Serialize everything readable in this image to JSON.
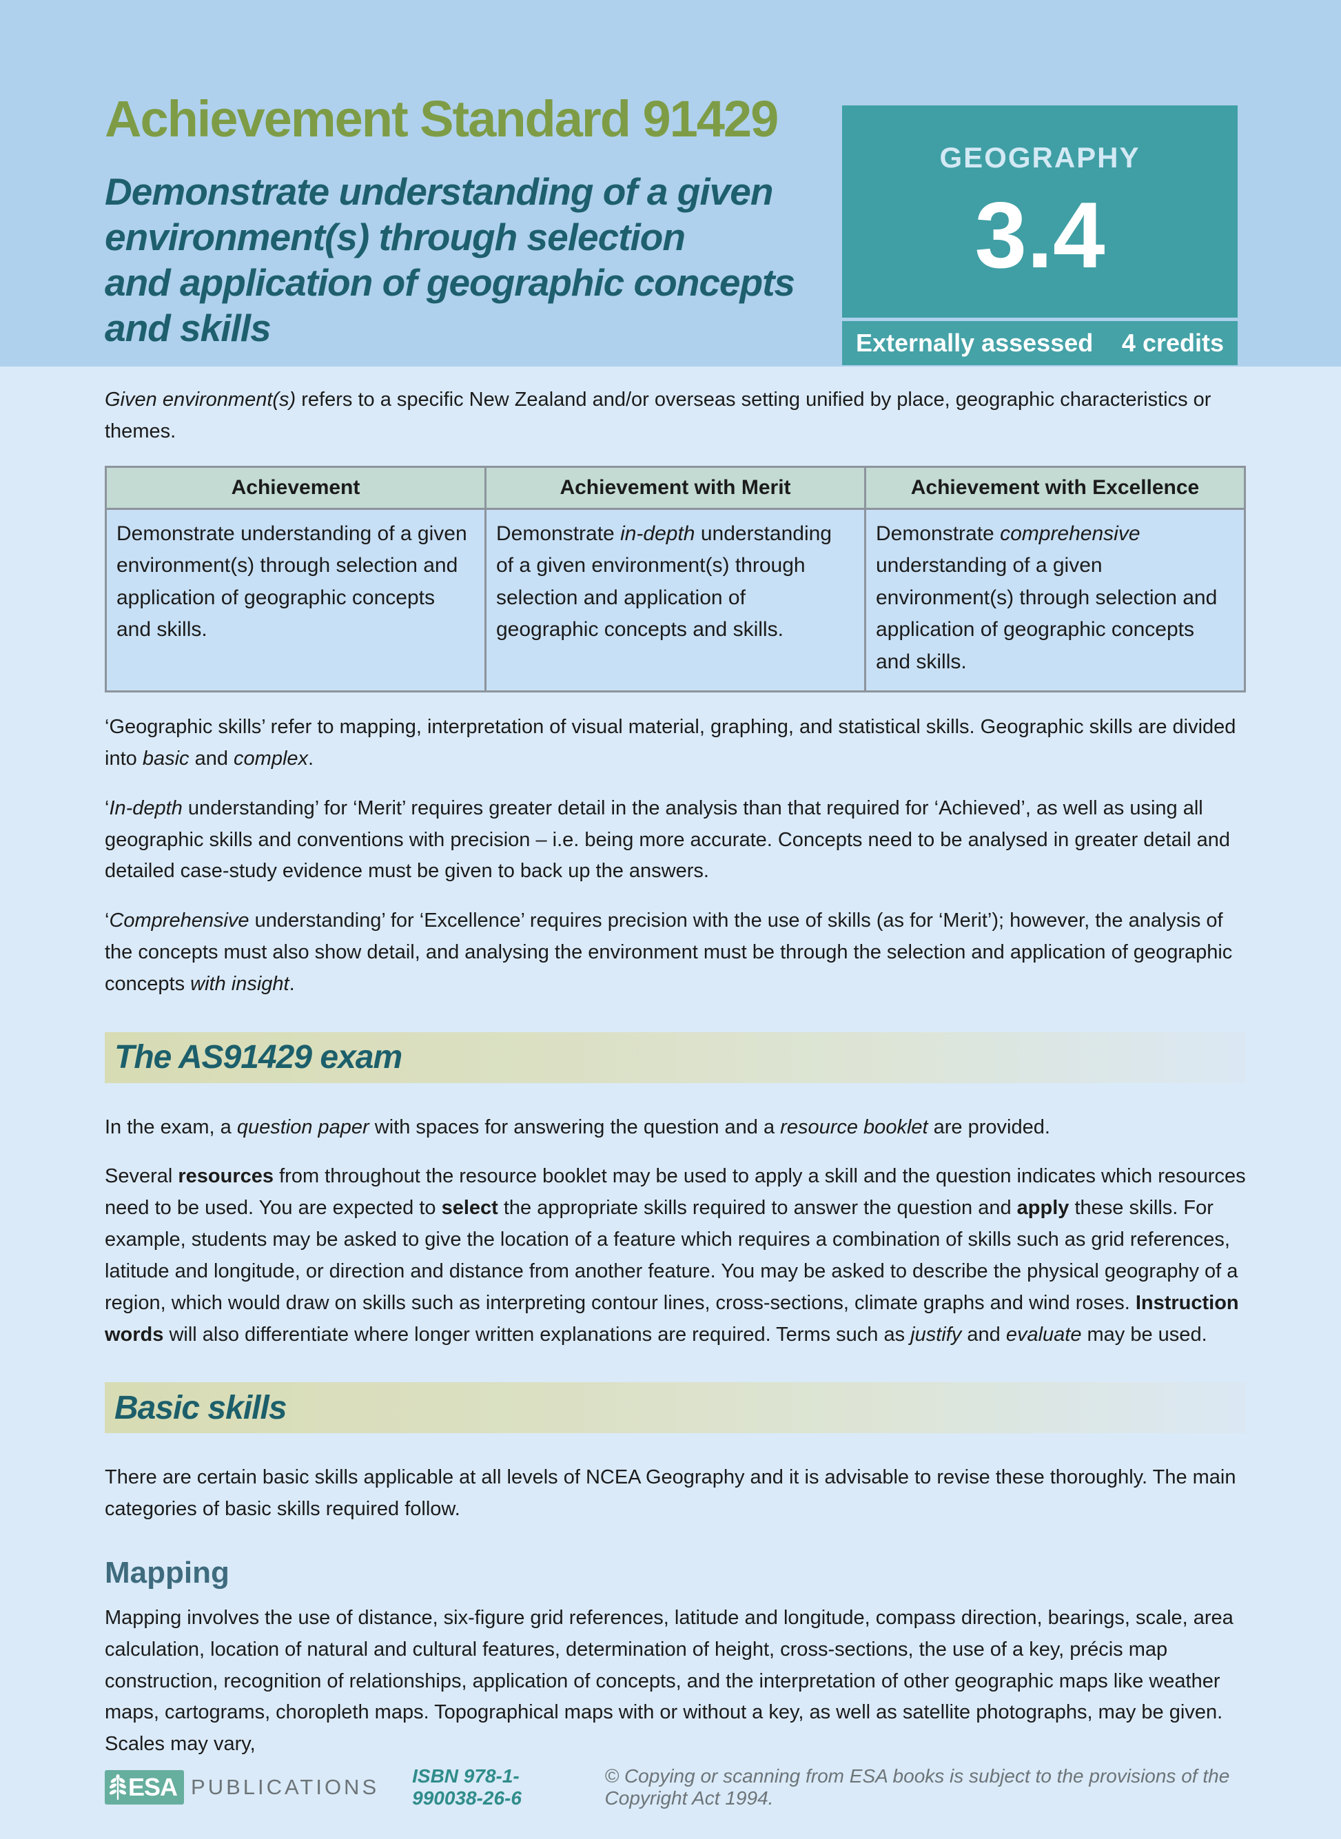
{
  "colors": {
    "header_band": "#afd1ed",
    "page_background": "#daeaf8",
    "badge_teal": "#3f9fa5",
    "title_olive": "#7e9c46",
    "heading_dark_teal": "#1e5f6d",
    "section_bar_khaki": "#d8dcb4",
    "table_header_bg": "#c3dbd3",
    "table_cell_bg": "#c8e0f5",
    "table_border": "#8d949c",
    "mapping_heading": "#3f6b7e",
    "footer_gray": "#6c7478",
    "isbn_teal": "#2f8c8a",
    "logo_green": "#66ae9e"
  },
  "header": {
    "title": "Achievement Standard 91429",
    "subtitle_lines": [
      "Demonstrate understanding of a given",
      "environment(s) through selection",
      "and application of geographic concepts",
      "and skills"
    ],
    "badge": {
      "subject": "GEOGRAPHY",
      "level": "3.4",
      "assessment": "Externally assessed",
      "credits": "4 credits"
    }
  },
  "intro": [
    {
      "t": "Given environment(s)",
      "f": "i"
    },
    {
      "t": " refers to a specific New Zealand and/or overseas setting unified by place, geographic characteristics or themes."
    }
  ],
  "table": {
    "headers": [
      "Achievement",
      "Achievement with Merit",
      "Achievement with Excellence"
    ],
    "rows": [
      [
        [
          {
            "t": "Demonstrate understanding of a given environment(s) through selection and application of geographic concepts and skills."
          }
        ],
        [
          {
            "t": "Demonstrate "
          },
          {
            "t": "in-depth",
            "f": "i"
          },
          {
            "t": " understanding of a given environment(s) through selection and application of geographic concepts and skills."
          }
        ],
        [
          {
            "t": "Demonstrate "
          },
          {
            "t": "comprehensive",
            "f": "i"
          },
          {
            "t": " understanding of a given environment(s) through selection and application of geographic concepts and skills."
          }
        ]
      ]
    ]
  },
  "paragraphs": {
    "geographic_skills": [
      {
        "t": "‘Geographic skills’ refer to mapping, interpretation of visual material, graphing, and statistical skills. Geographic skills are divided into "
      },
      {
        "t": "basic",
        "f": "i"
      },
      {
        "t": " and "
      },
      {
        "t": "complex",
        "f": "i"
      },
      {
        "t": "."
      }
    ],
    "in_depth": [
      {
        "t": "‘"
      },
      {
        "t": "In-depth",
        "f": "i"
      },
      {
        "t": " understanding’ for ‘Merit’ requires greater detail in the analysis than that required for ‘Achieved’, as well as using all geographic skills and conventions with precision – i.e. being more accurate. Concepts need to be analysed in greater detail and detailed case-study evidence must be given to back up the answers."
      }
    ],
    "comprehensive": [
      {
        "t": "‘"
      },
      {
        "t": "Comprehensive",
        "f": "i"
      },
      {
        "t": " understanding’ for ‘Excellence’ requires precision with the use of skills (as for ‘Merit’); however, the analysis of the concepts must also show detail, and analysing the environment must be through the selection and application of geographic concepts "
      },
      {
        "t": "with insight",
        "f": "i"
      },
      {
        "t": "."
      }
    ]
  },
  "exam_section": {
    "heading": "The AS91429 exam",
    "p1": [
      {
        "t": "In the exam, a "
      },
      {
        "t": "question paper",
        "f": "i"
      },
      {
        "t": " with spaces for answering the question and a "
      },
      {
        "t": "resource booklet",
        "f": "i"
      },
      {
        "t": " are provided."
      }
    ],
    "p2": [
      {
        "t": "Several "
      },
      {
        "t": "resources",
        "f": "b"
      },
      {
        "t": " from throughout the resource booklet may be used to apply a skill and the question indicates which resources need to be used. You are expected to "
      },
      {
        "t": "select",
        "f": "b"
      },
      {
        "t": " the appropriate skills required to answer the question and "
      },
      {
        "t": "apply",
        "f": "b"
      },
      {
        "t": " these skills. For example, students may be asked to give the location of a feature which requires a combination of skills such as grid references, latitude and longitude, or direction and distance from another feature. You may be asked to describe the physical geography of a region, which would draw on skills such as interpreting contour lines, cross-sections, climate graphs and wind roses. "
      },
      {
        "t": "Instruction words",
        "f": "b"
      },
      {
        "t": " will also differentiate where longer written explanations are required. Terms such as "
      },
      {
        "t": "justify",
        "f": "i"
      },
      {
        "t": " and "
      },
      {
        "t": "evaluate",
        "f": "i"
      },
      {
        "t": " may be used."
      }
    ]
  },
  "basic_section": {
    "heading": "Basic skills",
    "p1": [
      {
        "t": "There are certain basic skills applicable at all levels of NCEA Geography and it is advisable to revise these thoroughly. The main categories of basic skills required follow."
      }
    ]
  },
  "mapping_section": {
    "heading": "Mapping",
    "p1": [
      {
        "t": "Mapping involves the use of distance, six-figure grid references, latitude and longitude, compass direction, bearings, scale, area calculation, location of natural and cultural features, determination of height, cross-sections, the use of a key, précis map construction, recognition of relationships, application of concepts, and the interpretation of other geographic maps like weather maps, cartograms, choropleth maps. Topographical maps with or without a key, as well as satellite photographs, may be given. Scales may vary,"
      }
    ]
  },
  "footer": {
    "logo_text": "ESA",
    "publications": "PUBLICATIONS",
    "isbn": "ISBN 978-1-990038-26-6",
    "copyright": "© Copying or scanning from ESA books is subject to the provisions of the Copyright Act 1994."
  }
}
